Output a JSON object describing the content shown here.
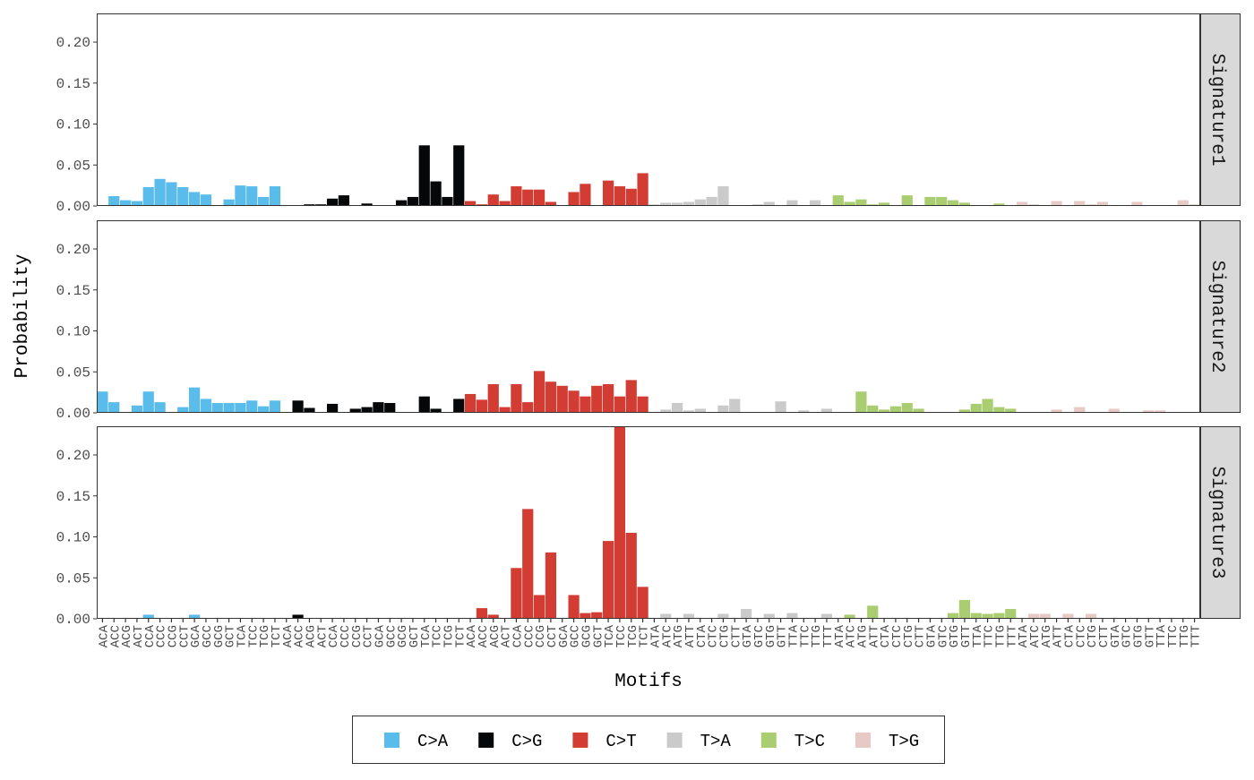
{
  "chart_data": {
    "type": "bar",
    "xlabel": "Motifs",
    "ylabel": "Probability",
    "ylim": [
      0,
      0.235
    ],
    "yticks": [
      "0.00",
      "0.05",
      "0.10",
      "0.15",
      "0.20"
    ],
    "ytick_values": [
      0,
      0.05,
      0.1,
      0.15,
      0.2
    ],
    "grid": false,
    "legend_position": "bottom",
    "groups": [
      {
        "name": "C>A",
        "color": "#5ABCEB"
      },
      {
        "name": "C>G",
        "color": "#050708"
      },
      {
        "name": "C>T",
        "color": "#D33C32"
      },
      {
        "name": "T>A",
        "color": "#CBCACB"
      },
      {
        "name": "T>C",
        "color": "#ABCD72"
      },
      {
        "name": "T>G",
        "color": "#E7C9C6"
      }
    ],
    "categories": [
      "ACA",
      "ACC",
      "ACG",
      "ACT",
      "CCA",
      "CCC",
      "CCG",
      "CCT",
      "GCA",
      "GCC",
      "GCG",
      "GCT",
      "TCA",
      "TCC",
      "TCG",
      "TCT",
      "ACA",
      "ACC",
      "ACG",
      "ACT",
      "CCA",
      "CCC",
      "CCG",
      "CCT",
      "GCA",
      "GCC",
      "GCG",
      "GCT",
      "TCA",
      "TCC",
      "TCG",
      "TCT",
      "ACA",
      "ACC",
      "ACG",
      "ACT",
      "CCA",
      "CCC",
      "CCG",
      "CCT",
      "GCA",
      "GCC",
      "GCG",
      "GCT",
      "TCA",
      "TCC",
      "TCG",
      "TCT",
      "ATA",
      "ATC",
      "ATG",
      "ATT",
      "CTA",
      "CTC",
      "CTG",
      "CTT",
      "GTA",
      "GTC",
      "GTG",
      "GTT",
      "TTA",
      "TTC",
      "TTG",
      "TTT",
      "ATA",
      "ATC",
      "ATG",
      "ATT",
      "CTA",
      "CTC",
      "CTG",
      "CTT",
      "GTA",
      "GTC",
      "GTG",
      "GTT",
      "TTA",
      "TTC",
      "TTG",
      "TTT",
      "ATA",
      "ATC",
      "ATG",
      "ATT",
      "CTA",
      "CTC",
      "CTG",
      "CTT",
      "GTA",
      "GTC",
      "GTG",
      "GTT",
      "TTA",
      "TTC",
      "TTG",
      "TTT"
    ],
    "series": [
      {
        "name": "Signature1",
        "values": [
          0,
          0.012,
          0.007,
          0.006,
          0.023,
          0.033,
          0.029,
          0.023,
          0.017,
          0.014,
          0,
          0.008,
          0.025,
          0.024,
          0.011,
          0.024,
          0.001,
          0.001,
          0.002,
          0.002,
          0.009,
          0.013,
          0.001,
          0.003,
          0.001,
          0.001,
          0.007,
          0.011,
          0.074,
          0.03,
          0.011,
          0.074,
          0.006,
          0.002,
          0.014,
          0.006,
          0.024,
          0.02,
          0.02,
          0.005,
          0.001,
          0.017,
          0.027,
          0.001,
          0.031,
          0.024,
          0.021,
          0.04,
          0.002,
          0.004,
          0.004,
          0.005,
          0.008,
          0.011,
          0.024,
          0.001,
          0.001,
          0.002,
          0.005,
          0,
          0.007,
          0,
          0.007,
          0,
          0.013,
          0.005,
          0.008,
          0.002,
          0.004,
          0.001,
          0.013,
          0,
          0.011,
          0.011,
          0.007,
          0.004,
          0.001,
          0.001,
          0.003,
          0.001,
          0.005,
          0.002,
          0,
          0.006,
          0,
          0.006,
          0.002,
          0.005,
          0,
          0,
          0.005,
          0,
          0,
          0,
          0.007,
          0.002
        ]
      },
      {
        "name": "Signature2",
        "values": [
          0.026,
          0.013,
          0,
          0.009,
          0.026,
          0.013,
          0,
          0.007,
          0.031,
          0.017,
          0.012,
          0.012,
          0.012,
          0.015,
          0.008,
          0.015,
          0,
          0.015,
          0.006,
          0,
          0.011,
          0,
          0.005,
          0.007,
          0.013,
          0.012,
          0,
          0,
          0.02,
          0.005,
          0,
          0.017,
          0.023,
          0.016,
          0.035,
          0.007,
          0.035,
          0.013,
          0.051,
          0.038,
          0.033,
          0.027,
          0.02,
          0.033,
          0.035,
          0.02,
          0.04,
          0.02,
          0,
          0.004,
          0.012,
          0.003,
          0.005,
          0,
          0.009,
          0.017,
          0,
          0,
          0,
          0.014,
          0,
          0.003,
          0,
          0.005,
          0,
          0,
          0.026,
          0.009,
          0.004,
          0.008,
          0.012,
          0.005,
          0,
          0,
          0,
          0.004,
          0.011,
          0.017,
          0.007,
          0.005,
          0,
          0,
          0,
          0.004,
          0,
          0.007,
          0,
          0,
          0.005,
          0,
          0,
          0.003,
          0.003,
          0,
          0,
          0
        ]
      },
      {
        "name": "Signature3",
        "values": [
          0,
          0,
          0,
          0,
          0.005,
          0,
          0,
          0,
          0.005,
          0,
          0,
          0,
          0,
          0,
          0,
          0,
          0,
          0.005,
          0,
          0,
          0,
          0,
          0,
          0,
          0,
          0,
          0,
          0,
          0,
          0,
          0,
          0,
          0,
          0.013,
          0.005,
          0,
          0.062,
          0.134,
          0.029,
          0.081,
          0,
          0.029,
          0.007,
          0.008,
          0.095,
          0.235,
          0.105,
          0.039,
          0,
          0.006,
          0,
          0.006,
          0,
          0,
          0.006,
          0,
          0.012,
          0,
          0.006,
          0,
          0.007,
          0,
          0,
          0.006,
          0,
          0.005,
          0,
          0.016,
          0,
          0,
          0,
          0,
          0,
          0,
          0.007,
          0.023,
          0.007,
          0.006,
          0.007,
          0.012,
          0,
          0.006,
          0.006,
          0,
          0.006,
          0,
          0.006,
          0,
          0,
          0,
          0,
          0,
          0,
          0,
          0,
          0
        ]
      }
    ]
  }
}
